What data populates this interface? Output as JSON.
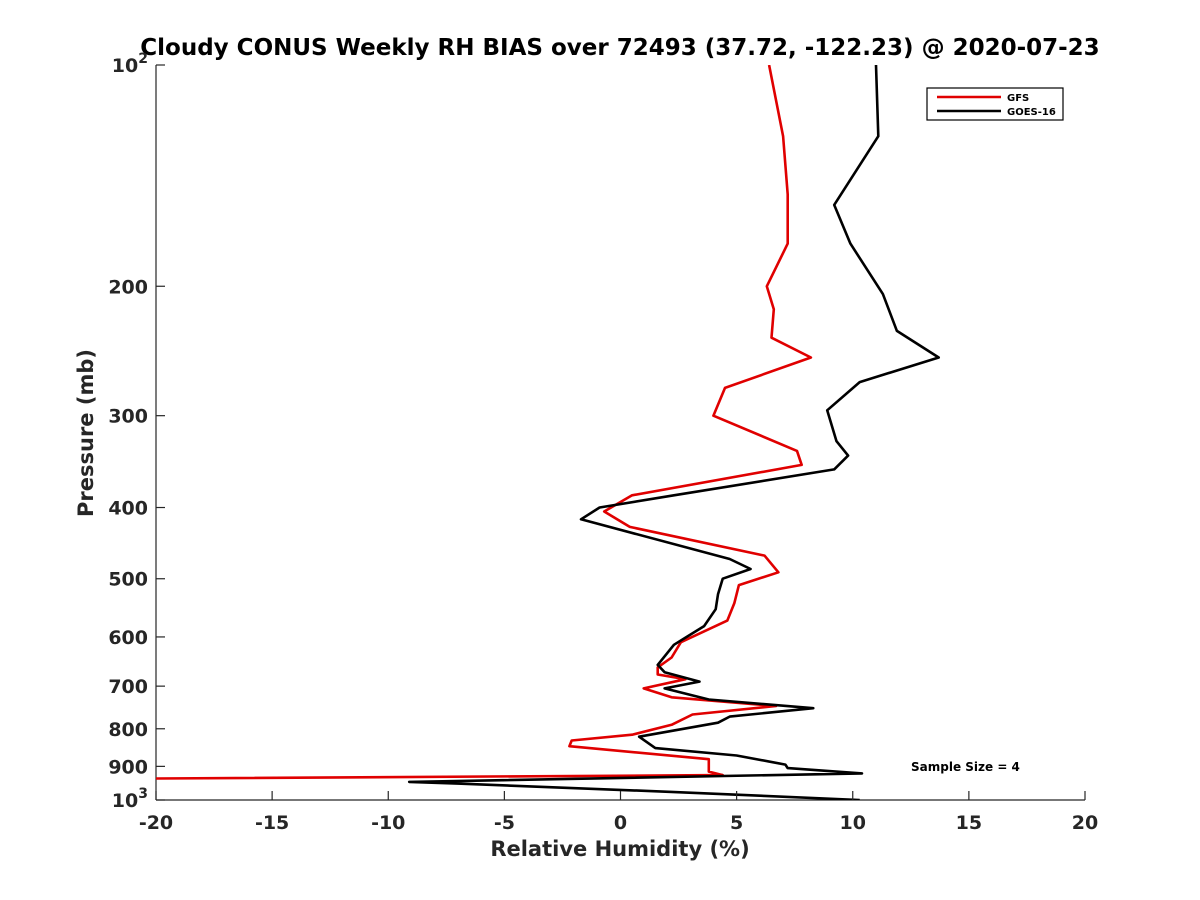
{
  "chart_data": {
    "type": "line",
    "title": "Cloudy CONUS Weekly RH BIAS over 72493 (37.72, -122.23) @ 2020-07-23",
    "xlabel": "Relative Humidity (%)",
    "ylabel": "Pressure (mb)",
    "xlim": [
      -20,
      20
    ],
    "ylim": [
      100,
      1000
    ],
    "yscale": "log",
    "y_reversed": true,
    "grid": false,
    "legend_position": "top-right",
    "x_ticks": [
      -20,
      -15,
      -10,
      -5,
      0,
      5,
      10,
      15,
      20
    ],
    "x_tick_labels": [
      "-20",
      "-15",
      "-10",
      "-5",
      "0",
      "5",
      "10",
      "15",
      "20"
    ],
    "y_ticks": [
      100,
      200,
      300,
      400,
      500,
      600,
      700,
      800,
      900,
      1000
    ],
    "y_tick_labels": [
      {
        "base": "10",
        "exp": "2"
      },
      {
        "base": "200",
        "exp": ""
      },
      {
        "base": "300",
        "exp": ""
      },
      {
        "base": "400",
        "exp": ""
      },
      {
        "base": "500",
        "exp": ""
      },
      {
        "base": "600",
        "exp": ""
      },
      {
        "base": "700",
        "exp": ""
      },
      {
        "base": "800",
        "exp": ""
      },
      {
        "base": "900",
        "exp": ""
      },
      {
        "base": "10",
        "exp": "3"
      }
    ],
    "series": [
      {
        "name": "GFS",
        "color": "#e00000",
        "points": [
          [
            6.4,
            100
          ],
          [
            7.0,
            125
          ],
          [
            7.2,
            150
          ],
          [
            7.2,
            175
          ],
          [
            6.3,
            200
          ],
          [
            6.6,
            215
          ],
          [
            6.5,
            235
          ],
          [
            8.2,
            250
          ],
          [
            4.5,
            275
          ],
          [
            4.0,
            300
          ],
          [
            7.6,
            335
          ],
          [
            7.8,
            350
          ],
          [
            0.5,
            385
          ],
          [
            -0.7,
            405
          ],
          [
            0.4,
            425
          ],
          [
            6.2,
            465
          ],
          [
            6.8,
            490
          ],
          [
            5.1,
            510
          ],
          [
            4.9,
            540
          ],
          [
            4.6,
            570
          ],
          [
            2.6,
            610
          ],
          [
            2.2,
            640
          ],
          [
            1.6,
            660
          ],
          [
            1.6,
            675
          ],
          [
            2.8,
            685
          ],
          [
            1.0,
            705
          ],
          [
            2.2,
            725
          ],
          [
            6.7,
            745
          ],
          [
            3.1,
            765
          ],
          [
            2.2,
            790
          ],
          [
            0.5,
            815
          ],
          [
            -2.1,
            830
          ],
          [
            -2.2,
            845
          ],
          [
            3.8,
            880
          ],
          [
            3.8,
            915
          ],
          [
            4.4,
            925
          ],
          [
            -20.0,
            935
          ]
        ]
      },
      {
        "name": "GOES-16",
        "color": "#000000",
        "points": [
          [
            11.0,
            100
          ],
          [
            11.1,
            125
          ],
          [
            9.2,
            155
          ],
          [
            9.9,
            175
          ],
          [
            11.3,
            205
          ],
          [
            11.9,
            230
          ],
          [
            13.7,
            250
          ],
          [
            10.3,
            270
          ],
          [
            8.9,
            295
          ],
          [
            9.3,
            325
          ],
          [
            9.8,
            340
          ],
          [
            9.2,
            355
          ],
          [
            2.3,
            385
          ],
          [
            -0.9,
            400
          ],
          [
            -1.7,
            415
          ],
          [
            4.7,
            470
          ],
          [
            5.6,
            485
          ],
          [
            4.4,
            500
          ],
          [
            4.2,
            525
          ],
          [
            4.1,
            550
          ],
          [
            3.6,
            580
          ],
          [
            2.3,
            615
          ],
          [
            1.6,
            655
          ],
          [
            1.9,
            670
          ],
          [
            3.4,
            690
          ],
          [
            1.9,
            705
          ],
          [
            3.8,
            730
          ],
          [
            8.3,
            750
          ],
          [
            4.7,
            770
          ],
          [
            4.2,
            785
          ],
          [
            0.8,
            820
          ],
          [
            1.5,
            850
          ],
          [
            5.0,
            870
          ],
          [
            7.1,
            895
          ],
          [
            7.2,
            905
          ],
          [
            10.4,
            920
          ],
          [
            -9.1,
            945
          ],
          [
            -7.0,
            950
          ],
          [
            2.2,
            975
          ],
          [
            10.3,
            1000
          ]
        ]
      }
    ],
    "annotations": [
      {
        "text": "Sample Size = 4",
        "x": 14.2,
        "y": 905
      }
    ]
  }
}
